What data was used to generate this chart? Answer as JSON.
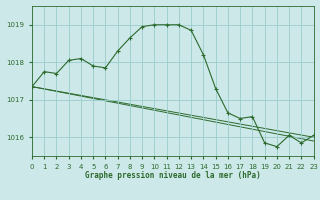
{
  "title": "Graphe pression niveau de la mer (hPa)",
  "background_color": "#cce8e8",
  "grid_color": "#99cccc",
  "line_color": "#2d6a2d",
  "xlim": [
    0,
    23
  ],
  "ylim": [
    1015.5,
    1019.5
  ],
  "yticks": [
    1016,
    1017,
    1018,
    1019
  ],
  "xticks": [
    0,
    1,
    2,
    3,
    4,
    5,
    6,
    7,
    8,
    9,
    10,
    11,
    12,
    13,
    14,
    15,
    16,
    17,
    18,
    19,
    20,
    21,
    22,
    23
  ],
  "series_main": {
    "x": [
      0,
      1,
      2,
      3,
      4,
      5,
      6,
      7,
      8,
      9,
      10,
      11,
      12,
      13,
      14,
      15,
      16,
      17,
      18,
      19,
      20,
      21,
      22,
      23
    ],
    "y": [
      1017.35,
      1017.75,
      1017.7,
      1018.05,
      1018.1,
      1017.9,
      1017.85,
      1018.3,
      1018.65,
      1018.95,
      1019.0,
      1019.0,
      1019.0,
      1018.85,
      1018.2,
      1017.3,
      1016.65,
      1016.5,
      1016.55,
      1015.85,
      1015.75,
      1016.05,
      1015.85,
      1016.05
    ]
  },
  "series_line1": {
    "x": [
      0,
      23
    ],
    "y": [
      1017.35,
      1016.0
    ]
  },
  "series_line2": {
    "x": [
      0,
      23
    ],
    "y": [
      1017.35,
      1015.9
    ]
  }
}
